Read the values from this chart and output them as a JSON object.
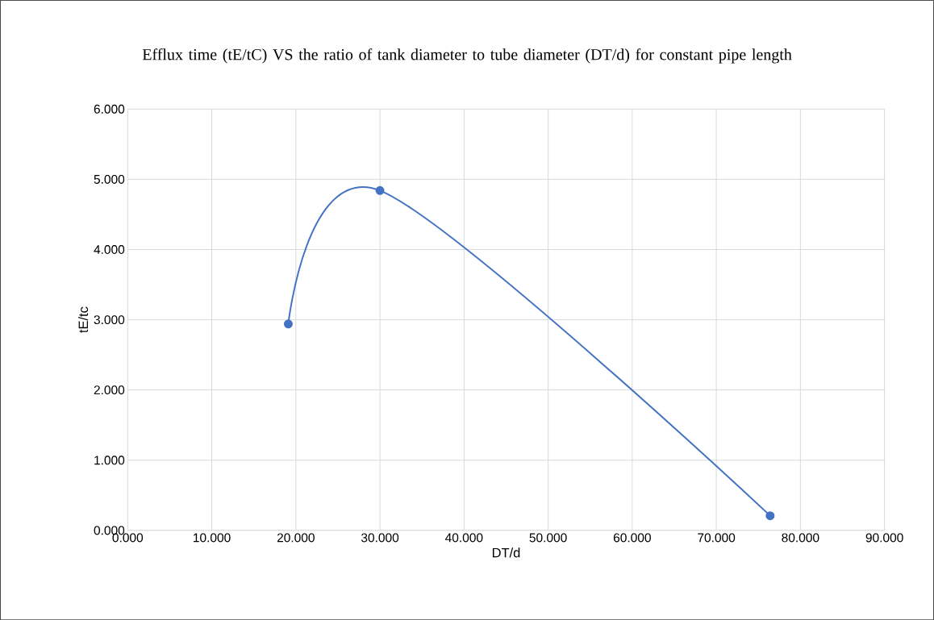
{
  "chart_data": {
    "type": "line",
    "title": "Efflux time (tE/tC) VS the ratio of tank diameter to tube diameter (DT/d) for constant pipe length",
    "xlabel": "DT/d",
    "ylabel": "tE/tc",
    "x": [
      19.1,
      30.0,
      76.4
    ],
    "series": [
      {
        "color": "#4472c4",
        "values": [
          2.94,
          4.84,
          0.21
        ]
      }
    ],
    "xlim": [
      0,
      90
    ],
    "ylim": [
      0,
      6
    ],
    "xticks": [
      {
        "value": 0,
        "label": "0.000"
      },
      {
        "value": 10,
        "label": "10.000"
      },
      {
        "value": 20,
        "label": "20.000"
      },
      {
        "value": 30,
        "label": "30.000"
      },
      {
        "value": 40,
        "label": "40.000"
      },
      {
        "value": 50,
        "label": "50.000"
      },
      {
        "value": 60,
        "label": "60.000"
      },
      {
        "value": 70,
        "label": "70.000"
      },
      {
        "value": 80,
        "label": "80.000"
      },
      {
        "value": 90,
        "label": "90.000"
      }
    ],
    "yticks": [
      {
        "value": 0,
        "label": "0.000"
      },
      {
        "value": 1,
        "label": "1.000"
      },
      {
        "value": 2,
        "label": "2.000"
      },
      {
        "value": 3,
        "label": "3.000"
      },
      {
        "value": 4,
        "label": "4.000"
      },
      {
        "value": 5,
        "label": "5.000"
      },
      {
        "value": 6,
        "label": "6.000"
      }
    ],
    "grid": true,
    "marker": "circle"
  }
}
